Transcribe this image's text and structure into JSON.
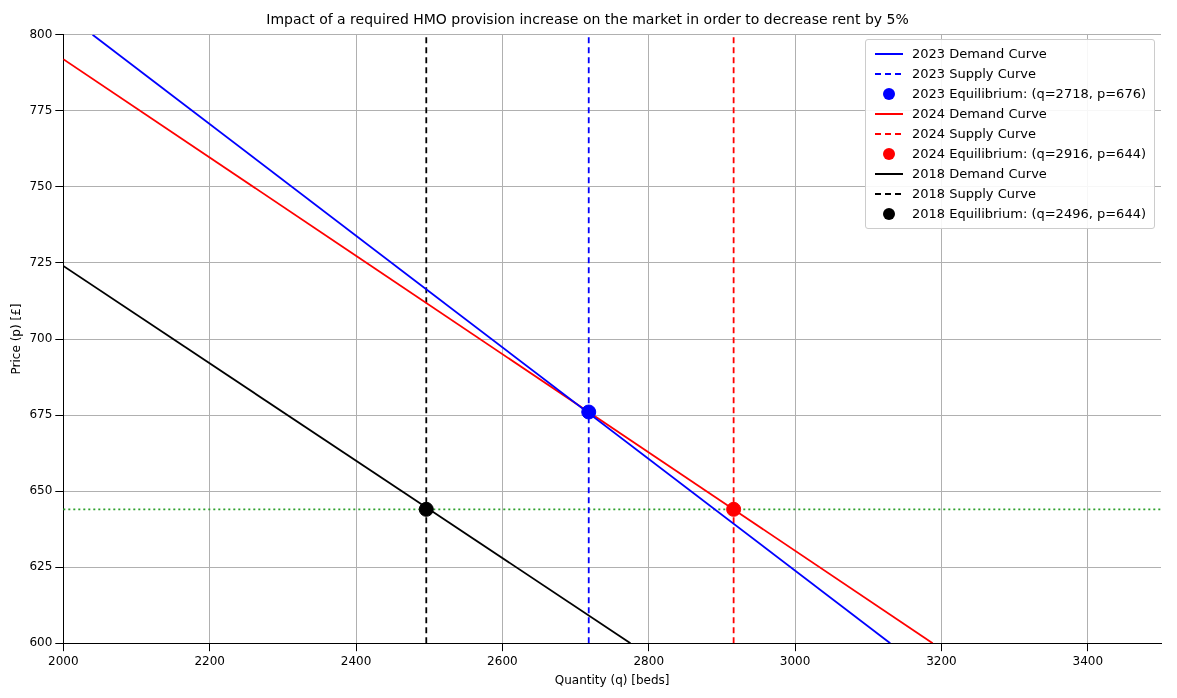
{
  "chart_data": {
    "type": "line",
    "title": "Impact of a required HMO provision increase on the market in order to decrease rent by 5%",
    "xlabel": "Quantity (q) [beds]",
    "ylabel": "Price (p) [£]",
    "xlim": [
      2000,
      3500
    ],
    "xticks": [
      2000,
      2200,
      2400,
      2600,
      2800,
      3000,
      3200,
      3400
    ],
    "ylim": [
      600,
      800
    ],
    "yticks": [
      600,
      625,
      650,
      675,
      700,
      725,
      750,
      775,
      800
    ],
    "grid": true,
    "legend": "top right",
    "ref_lines": [
      {
        "axis": "y",
        "value": 644,
        "color": "#2ca02c",
        "line_style": "dotted"
      }
    ],
    "series": [
      {
        "name": "2023 Demand Curve",
        "type": "line",
        "color": "#0000ff",
        "line_style": "solid",
        "x": [
          2040,
          3130
        ],
        "values": [
          800,
          600
        ]
      },
      {
        "name": "2023 Supply Curve",
        "type": "line",
        "color": "#0000ff",
        "line_style": "dashed",
        "x": [
          2718,
          2718
        ],
        "values": [
          600,
          800
        ]
      },
      {
        "name": "2023 Equilibrium: (q=2718, p=676)",
        "type": "scatter",
        "color": "#0000ff",
        "marker": "circle",
        "x": [
          2718
        ],
        "values": [
          676
        ]
      },
      {
        "name": "2024 Demand Curve",
        "type": "line",
        "color": "#ff0000",
        "line_style": "solid",
        "x": [
          2000,
          3188
        ],
        "values": [
          792,
          600
        ]
      },
      {
        "name": "2024 Supply Curve",
        "type": "line",
        "color": "#ff0000",
        "line_style": "dashed",
        "x": [
          2916,
          2916
        ],
        "values": [
          600,
          800
        ]
      },
      {
        "name": "2024 Equilibrium: (q=2916, p=644)",
        "type": "scatter",
        "color": "#ff0000",
        "marker": "circle",
        "x": [
          2916
        ],
        "values": [
          644
        ]
      },
      {
        "name": "2018 Demand Curve",
        "type": "line",
        "color": "#000000",
        "line_style": "solid",
        "x": [
          2000,
          2775
        ],
        "values": [
          724,
          600
        ]
      },
      {
        "name": "2018 Supply Curve",
        "type": "line",
        "color": "#000000",
        "line_style": "dashed",
        "x": [
          2496,
          2496
        ],
        "values": [
          600,
          800
        ]
      },
      {
        "name": "2018 Equilibrium: (q=2496, p=644)",
        "type": "scatter",
        "color": "#000000",
        "marker": "circle",
        "x": [
          2496
        ],
        "values": [
          644
        ]
      }
    ]
  }
}
